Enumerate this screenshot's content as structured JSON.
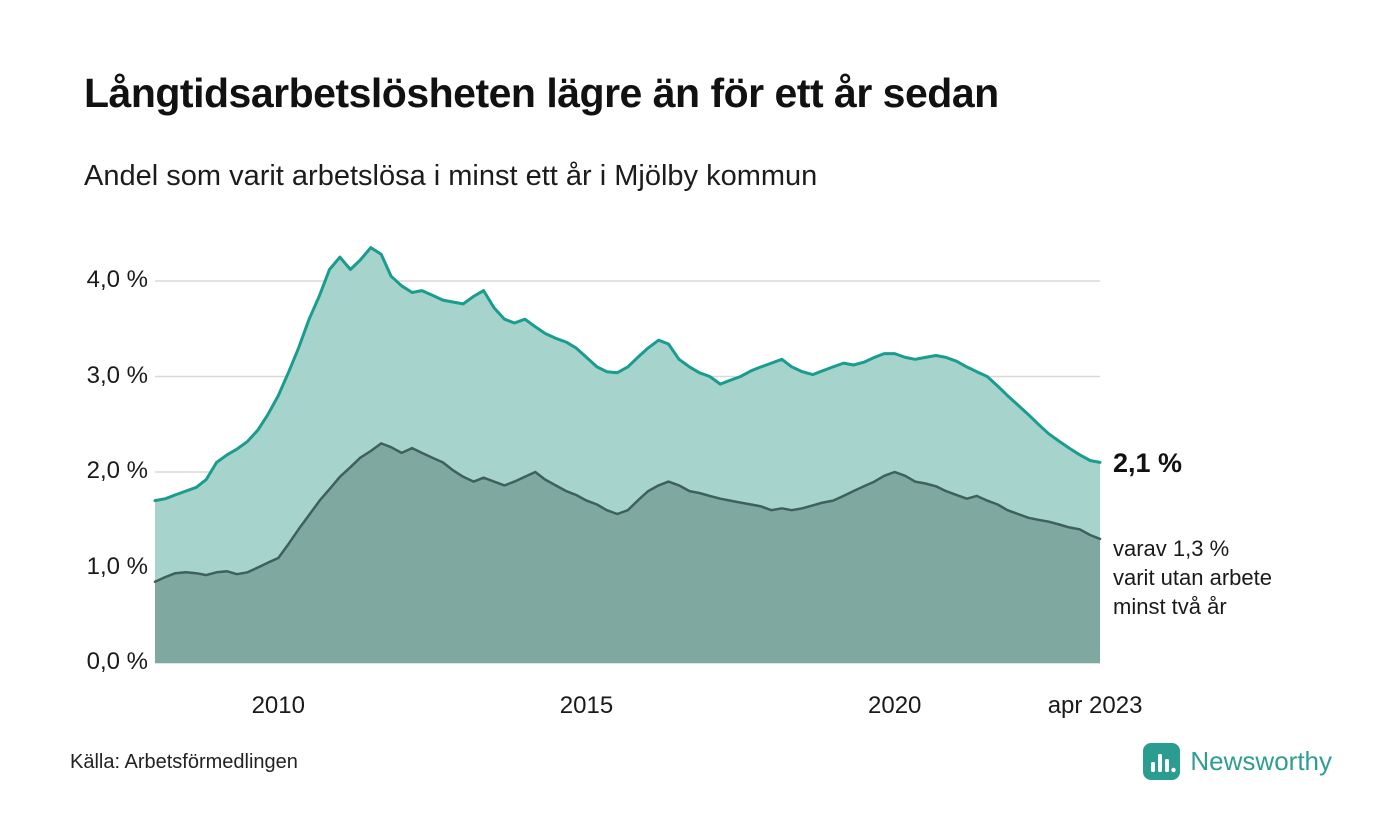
{
  "page": {
    "title": "Långtidsarbetslösheten lägre än för ett år sedan",
    "subtitle": "Andel som varit arbetslösa i minst ett år i Mjölby kommun",
    "source": "Källa: Arbetsförmedlingen",
    "brand": {
      "name": "Newsworthy",
      "icon": "bar-chart-logo-icon",
      "color": "#2b9c90"
    }
  },
  "annotations": {
    "latest_total": "2,1 %",
    "latest_two_years": "varav 1,3 %\nvarit utan arbete\nminst två år"
  },
  "chart_data": {
    "type": "area",
    "title": "Långtidsarbetslösheten lägre än för ett år sedan",
    "subtitle": "Andel som varit arbetslösa i minst ett år i Mjölby kommun",
    "unit": "%",
    "xlim": [
      2008,
      2023.33
    ],
    "ylim": [
      0,
      4.5
    ],
    "grid": "horizontal",
    "grid_color": "#d9d9d9",
    "background": "#ffffff",
    "x": [
      2008,
      2008.17,
      2008.33,
      2008.5,
      2008.67,
      2008.83,
      2009,
      2009.17,
      2009.33,
      2009.5,
      2009.67,
      2009.83,
      2010,
      2010.17,
      2010.33,
      2010.5,
      2010.67,
      2010.83,
      2011,
      2011.17,
      2011.33,
      2011.5,
      2011.67,
      2011.83,
      2012,
      2012.17,
      2012.33,
      2012.5,
      2012.67,
      2012.83,
      2013,
      2013.17,
      2013.33,
      2013.5,
      2013.67,
      2013.83,
      2014,
      2014.17,
      2014.33,
      2014.5,
      2014.67,
      2014.83,
      2015,
      2015.17,
      2015.33,
      2015.5,
      2015.67,
      2015.83,
      2016,
      2016.17,
      2016.33,
      2016.5,
      2016.67,
      2016.83,
      2017,
      2017.17,
      2017.33,
      2017.5,
      2017.67,
      2017.83,
      2018,
      2018.17,
      2018.33,
      2018.5,
      2018.67,
      2018.83,
      2019,
      2019.17,
      2019.33,
      2019.5,
      2019.67,
      2019.83,
      2020,
      2020.17,
      2020.33,
      2020.5,
      2020.67,
      2020.83,
      2021,
      2021.17,
      2021.33,
      2021.5,
      2021.67,
      2021.83,
      2022,
      2022.17,
      2022.33,
      2022.5,
      2022.67,
      2022.83,
      2023,
      2023.17,
      2023.33
    ],
    "series": [
      {
        "name": "Arbetslösa minst ett år",
        "fill": "#a6d3cb",
        "stroke": "#1a9c8e",
        "stroke_width": 3,
        "latest_label": "2,1 %",
        "values": [
          1.7,
          1.72,
          1.76,
          1.8,
          1.84,
          1.92,
          2.1,
          2.18,
          2.24,
          2.32,
          2.44,
          2.6,
          2.8,
          3.05,
          3.3,
          3.6,
          3.85,
          4.12,
          4.25,
          4.12,
          4.22,
          4.35,
          4.28,
          4.05,
          3.95,
          3.88,
          3.9,
          3.85,
          3.8,
          3.78,
          3.76,
          3.84,
          3.9,
          3.72,
          3.6,
          3.56,
          3.6,
          3.52,
          3.45,
          3.4,
          3.36,
          3.3,
          3.2,
          3.1,
          3.05,
          3.04,
          3.1,
          3.2,
          3.3,
          3.38,
          3.34,
          3.18,
          3.1,
          3.04,
          3.0,
          2.92,
          2.96,
          3.0,
          3.06,
          3.1,
          3.14,
          3.18,
          3.1,
          3.05,
          3.02,
          3.06,
          3.1,
          3.14,
          3.12,
          3.15,
          3.2,
          3.24,
          3.24,
          3.2,
          3.18,
          3.2,
          3.22,
          3.2,
          3.16,
          3.1,
          3.05,
          3.0,
          2.9,
          2.8,
          2.7,
          2.6,
          2.5,
          2.4,
          2.32,
          2.25,
          2.18,
          2.12,
          2.1
        ]
      },
      {
        "name": "Utan arbete minst två år",
        "fill": "#7fa8a1",
        "stroke": "#3f615b",
        "stroke_width": 2.5,
        "latest_label": "varav 1,3 %",
        "values": [
          0.85,
          0.9,
          0.94,
          0.95,
          0.94,
          0.92,
          0.95,
          0.96,
          0.93,
          0.95,
          1.0,
          1.05,
          1.1,
          1.25,
          1.4,
          1.55,
          1.7,
          1.82,
          1.95,
          2.05,
          2.15,
          2.22,
          2.3,
          2.26,
          2.2,
          2.25,
          2.2,
          2.15,
          2.1,
          2.02,
          1.95,
          1.9,
          1.94,
          1.9,
          1.86,
          1.9,
          1.95,
          2.0,
          1.92,
          1.86,
          1.8,
          1.76,
          1.7,
          1.66,
          1.6,
          1.56,
          1.6,
          1.7,
          1.8,
          1.86,
          1.9,
          1.86,
          1.8,
          1.78,
          1.75,
          1.72,
          1.7,
          1.68,
          1.66,
          1.64,
          1.6,
          1.62,
          1.6,
          1.62,
          1.65,
          1.68,
          1.7,
          1.75,
          1.8,
          1.85,
          1.9,
          1.96,
          2.0,
          1.96,
          1.9,
          1.88,
          1.85,
          1.8,
          1.76,
          1.72,
          1.75,
          1.7,
          1.66,
          1.6,
          1.56,
          1.52,
          1.5,
          1.48,
          1.45,
          1.42,
          1.4,
          1.34,
          1.3
        ]
      }
    ],
    "yticks": [
      {
        "value": 0,
        "label": "0,0 %"
      },
      {
        "value": 1,
        "label": "1,0 %"
      },
      {
        "value": 2,
        "label": "2,0 %"
      },
      {
        "value": 3,
        "label": "3,0 %"
      },
      {
        "value": 4,
        "label": "4,0 %"
      }
    ],
    "xticks": [
      {
        "value": 2010,
        "label": "2010"
      },
      {
        "value": 2015,
        "label": "2015"
      },
      {
        "value": 2020,
        "label": "2020"
      },
      {
        "value": 2023.25,
        "label": "apr 2023"
      }
    ]
  }
}
